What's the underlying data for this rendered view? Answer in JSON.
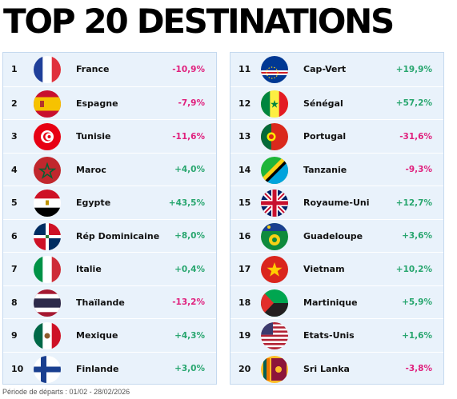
{
  "title": "TOP 20 DESTINATIONS",
  "footer": "Période de départs : 01/02 - 28/02/2026",
  "colors": {
    "negative": "#e0207d",
    "positive": "#28a66f",
    "panel": "#e9f2fb"
  },
  "left": [
    {
      "rank": "1",
      "name": "France",
      "variation": "-10,9%",
      "trend": "neg",
      "flag": "france-flag-icon"
    },
    {
      "rank": "2",
      "name": "Espagne",
      "variation": "-7,9%",
      "trend": "neg",
      "flag": "spain-flag-icon"
    },
    {
      "rank": "3",
      "name": "Tunisie",
      "variation": "-11,6%",
      "trend": "neg",
      "flag": "tunisia-flag-icon"
    },
    {
      "rank": "4",
      "name": "Maroc",
      "variation": "+4,0%",
      "trend": "pos",
      "flag": "morocco-flag-icon"
    },
    {
      "rank": "5",
      "name": "Egypte",
      "variation": "+43,5%",
      "trend": "pos",
      "flag": "egypt-flag-icon"
    },
    {
      "rank": "6",
      "name": "Rép Dominicaine",
      "variation": "+8,0%",
      "trend": "pos",
      "flag": "dominican-republic-flag-icon"
    },
    {
      "rank": "7",
      "name": "Italie",
      "variation": "+0,4%",
      "trend": "pos",
      "flag": "italy-flag-icon"
    },
    {
      "rank": "8",
      "name": "Thaïlande",
      "variation": "-13,2%",
      "trend": "neg",
      "flag": "thailand-flag-icon"
    },
    {
      "rank": "9",
      "name": "Mexique",
      "variation": "+4,3%",
      "trend": "pos",
      "flag": "mexico-flag-icon"
    },
    {
      "rank": "10",
      "name": "Finlande",
      "variation": "+3,0%",
      "trend": "pos",
      "flag": "finland-flag-icon"
    }
  ],
  "right": [
    {
      "rank": "11",
      "name": "Cap-Vert",
      "variation": "+19,9%",
      "trend": "pos",
      "flag": "cape-verde-flag-icon"
    },
    {
      "rank": "12",
      "name": "Sénégal",
      "variation": "+57,2%",
      "trend": "pos",
      "flag": "senegal-flag-icon"
    },
    {
      "rank": "13",
      "name": "Portugal",
      "variation": "-31,6%",
      "trend": "neg",
      "flag": "portugal-flag-icon"
    },
    {
      "rank": "14",
      "name": "Tanzanie",
      "variation": "-9,3%",
      "trend": "neg",
      "flag": "tanzania-flag-icon"
    },
    {
      "rank": "15",
      "name": "Royaume-Uni",
      "variation": "+12,7%",
      "trend": "pos",
      "flag": "united-kingdom-flag-icon"
    },
    {
      "rank": "16",
      "name": "Guadeloupe",
      "variation": "+3,6%",
      "trend": "pos",
      "flag": "guadeloupe-flag-icon"
    },
    {
      "rank": "17",
      "name": "Vietnam",
      "variation": "+10,2%",
      "trend": "pos",
      "flag": "vietnam-flag-icon"
    },
    {
      "rank": "18",
      "name": "Martinique",
      "variation": "+5,9%",
      "trend": "pos",
      "flag": "martinique-flag-icon"
    },
    {
      "rank": "19",
      "name": "Etats-Unis",
      "variation": "+1,6%",
      "trend": "pos",
      "flag": "usa-flag-icon"
    },
    {
      "rank": "20",
      "name": "Sri Lanka",
      "variation": "-3,8%",
      "trend": "neg",
      "flag": "sri-lanka-flag-icon"
    }
  ]
}
